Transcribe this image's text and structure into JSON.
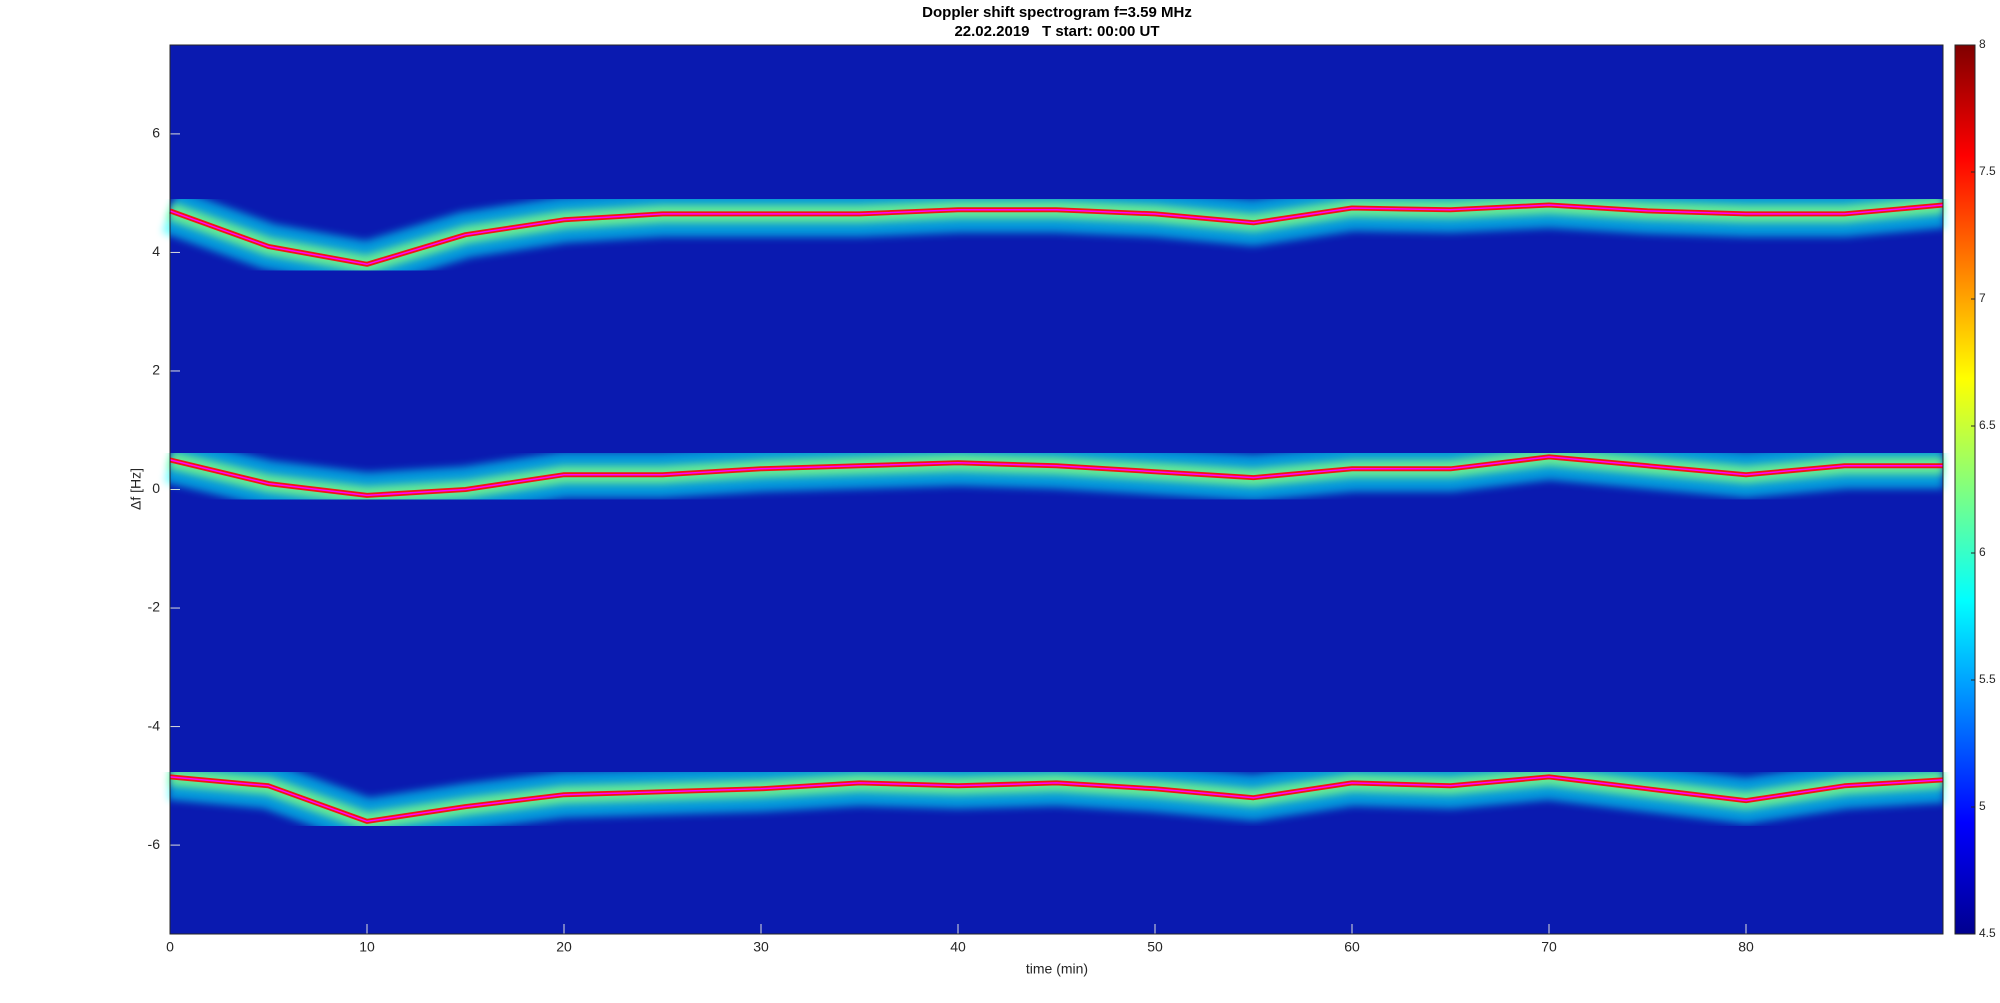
{
  "chart_data": {
    "type": "spectrogram",
    "title": "Doppler shift spectrogram f=3.59 MHz",
    "subtitle": "22.02.2019   T start: 00:00 UT",
    "xlabel": "time (min)",
    "ylabel": "Δf [Hz]",
    "xlim": [
      0,
      90
    ],
    "xticks": [
      0,
      10,
      20,
      30,
      40,
      50,
      60,
      70,
      80
    ],
    "ylim": [
      -7.5,
      7.5
    ],
    "yticks": [
      -6,
      -4,
      -2,
      0,
      2,
      4,
      6
    ],
    "colormap": "jet",
    "clim": [
      4.5,
      8
    ],
    "cticks": [
      4.5,
      5,
      5.5,
      6,
      6.5,
      7,
      7.5,
      8
    ],
    "x": [
      0,
      5,
      10,
      15,
      20,
      25,
      30,
      35,
      40,
      45,
      50,
      55,
      60,
      65,
      70,
      75,
      80,
      85,
      90
    ],
    "series": [
      {
        "color": "#ff00ff",
        "values": [
          4.7,
          4.1,
          3.8,
          4.3,
          4.55,
          4.65,
          4.65,
          4.65,
          4.72,
          4.72,
          4.65,
          4.5,
          4.75,
          4.72,
          4.8,
          4.7,
          4.65,
          4.65,
          4.8
        ]
      },
      {
        "color": "#ff00ff",
        "values": [
          0.5,
          0.1,
          -0.1,
          0.0,
          0.25,
          0.25,
          0.35,
          0.4,
          0.45,
          0.4,
          0.3,
          0.2,
          0.35,
          0.35,
          0.55,
          0.4,
          0.25,
          0.4,
          0.4
        ]
      },
      {
        "color": "#ff00ff",
        "values": [
          -4.85,
          -5.0,
          -5.6,
          -5.35,
          -5.15,
          -5.1,
          -5.05,
          -4.95,
          -5.0,
          -4.95,
          -5.05,
          -5.2,
          -4.95,
          -5.0,
          -4.85,
          -5.05,
          -5.25,
          -5.0,
          -4.9
        ]
      }
    ]
  }
}
